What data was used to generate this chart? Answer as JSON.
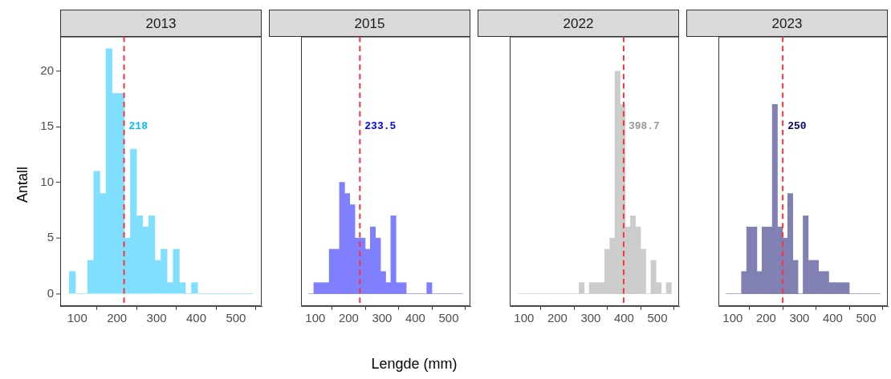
{
  "chart_data": [
    {
      "type": "histogram",
      "title": "2013",
      "ylabel": "Antall",
      "bins": [
        80,
        95.4,
        110.8,
        126.2,
        141.6,
        157,
        172.4,
        187.8,
        203.2,
        218.6,
        234,
        249.4,
        264.8,
        280.2,
        295.6,
        311,
        326.4,
        341.8,
        357.2,
        372.6,
        388,
        403.4,
        418.8,
        434.2,
        449.6,
        465,
        480.4,
        495.8,
        511.2,
        526.6,
        542
      ],
      "values": [
        2,
        0,
        0,
        3,
        11,
        9,
        22,
        18,
        18,
        5,
        13,
        7,
        6,
        7,
        3,
        4,
        1,
        4,
        1,
        0,
        1,
        0,
        0,
        0,
        0,
        0,
        0,
        0,
        0,
        0
      ],
      "color": "#80dfff",
      "xlim": [
        57,
        565
      ],
      "xticks": [
        100,
        200,
        300,
        400,
        500
      ],
      "ylim": [
        -1.1,
        23.1
      ],
      "yticks": [
        0,
        5,
        10,
        15,
        20
      ],
      "ref_lines": [
        {
          "axis": "x",
          "value": 218,
          "color": "#f8333b",
          "line_style": "dashed"
        }
      ],
      "annotations": [
        {
          "text": "218",
          "x": 218,
          "y": 15
        }
      ]
    },
    {
      "type": "histogram",
      "title": "2015",
      "xlabel": "Lengde (mm)",
      "tick_labels": "x",
      "bins": [
        80,
        95.4,
        110.8,
        126.2,
        141.6,
        157,
        172.4,
        187.8,
        203.2,
        218.6,
        234,
        249.4,
        264.8,
        280.2,
        295.6,
        311,
        326.4,
        341.8,
        357.2,
        372.6,
        388,
        403.4,
        418.8,
        434.2,
        449.6,
        465,
        480.4,
        495.8,
        511.2,
        526.6,
        542
      ],
      "values": [
        0,
        1,
        1,
        1,
        4,
        4,
        10,
        9,
        8,
        5,
        5,
        4,
        6,
        5,
        2,
        1,
        7,
        1,
        1,
        0,
        0,
        0,
        0,
        1,
        0,
        0,
        0,
        0,
        0,
        0
      ],
      "color": "#8080ff",
      "xlim": [
        57,
        565
      ],
      "xticks": [
        100,
        200,
        300,
        400,
        500
      ],
      "ylim": [
        -1.1,
        23.1
      ],
      "yticks": [
        0,
        5,
        10,
        15,
        20
      ],
      "ref_lines": [
        {
          "axis": "x",
          "value": 233.5,
          "color": "#f8333b",
          "line_style": "dashed"
        }
      ],
      "annotations": [
        {
          "text": "233.5",
          "x": 233.5,
          "y": 15
        }
      ]
    },
    {
      "type": "histogram",
      "title": "2022",
      "tick_labels": "x",
      "bins": [
        80,
        95.4,
        110.8,
        126.2,
        141.6,
        157,
        172.4,
        187.8,
        203.2,
        218.6,
        234,
        249.4,
        264.8,
        280.2,
        295.6,
        311,
        326.4,
        341.8,
        357.2,
        372.6,
        388,
        403.4,
        418.8,
        434.2,
        449.6,
        465,
        480.4,
        495.8,
        511.2,
        526.6,
        542
      ],
      "values": [
        0,
        0,
        0,
        0,
        0,
        0,
        0,
        0,
        0,
        0,
        0,
        0,
        1,
        0,
        1,
        1,
        1,
        4,
        5,
        20,
        17,
        6,
        7,
        6,
        4,
        0,
        3,
        1,
        0,
        1
      ],
      "color": "#cccccc",
      "xlim": [
        57,
        565
      ],
      "xticks": [
        100,
        200,
        300,
        400,
        500
      ],
      "ylim": [
        -1.1,
        23.1
      ],
      "yticks": [
        0,
        5,
        10,
        15,
        20
      ],
      "ref_lines": [
        {
          "axis": "x",
          "value": 398.7,
          "color": "#f8333b",
          "line_style": "dashed"
        }
      ],
      "annotations": [
        {
          "text": "398.7",
          "x": 398.7,
          "y": 15
        }
      ]
    },
    {
      "type": "histogram",
      "title": "2023",
      "tick_labels": "x",
      "bins": [
        80,
        95.4,
        110.8,
        126.2,
        141.6,
        157,
        172.4,
        187.8,
        203.2,
        218.6,
        234,
        249.4,
        264.8,
        280.2,
        295.6,
        311,
        326.4,
        341.8,
        357.2,
        372.6,
        388,
        403.4,
        418.8,
        434.2,
        449.6,
        465,
        480.4,
        495.8,
        511.2,
        526.6,
        542
      ],
      "values": [
        0,
        0,
        0,
        2,
        6,
        6,
        2,
        6,
        6,
        17,
        6,
        5,
        9,
        3,
        0,
        7,
        3,
        3,
        2,
        2,
        1,
        1,
        1,
        1,
        0,
        0,
        0,
        0,
        0,
        0
      ],
      "color": "#8080b3",
      "xlim": [
        57,
        565
      ],
      "xticks": [
        100,
        200,
        300,
        400,
        500
      ],
      "ylim": [
        -1.1,
        23.1
      ],
      "yticks": [
        0,
        5,
        10,
        15,
        20
      ],
      "ref_lines": [
        {
          "axis": "x",
          "value": 250,
          "color": "#f8333b",
          "line_style": "dashed"
        }
      ],
      "annotations": [
        {
          "text": "250",
          "x": 250,
          "y": 15
        }
      ]
    }
  ]
}
